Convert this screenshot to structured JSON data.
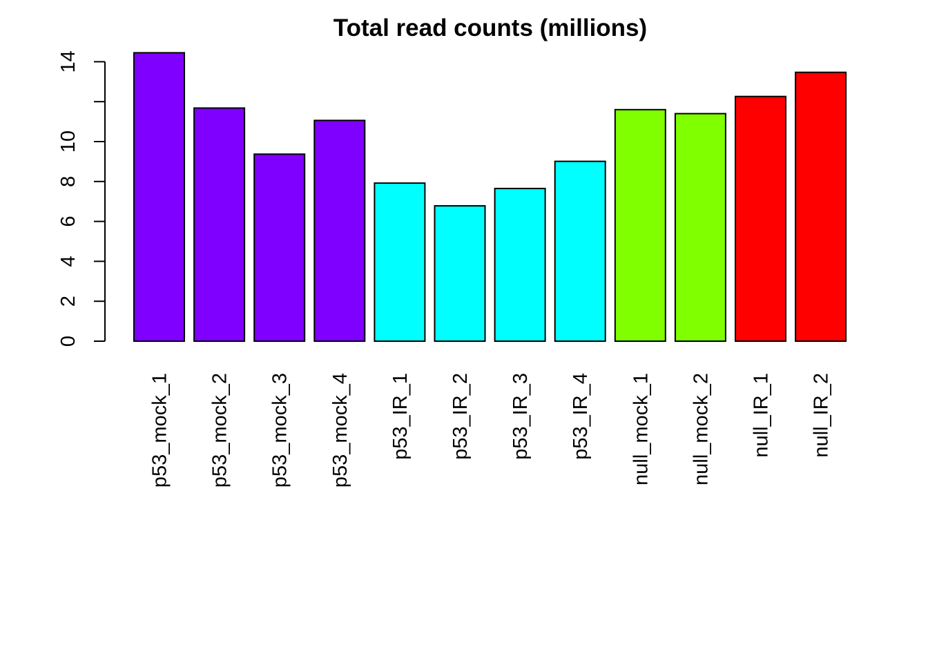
{
  "chart_data": {
    "type": "bar",
    "title": "Total read counts (millions)",
    "xlabel": "",
    "ylabel": "",
    "categories": [
      "p53_mock_1",
      "p53_mock_2",
      "p53_mock_3",
      "p53_mock_4",
      "p53_IR_1",
      "p53_IR_2",
      "p53_IR_3",
      "p53_IR_4",
      "null_mock_1",
      "null_mock_2",
      "null_IR_1",
      "null_IR_2"
    ],
    "values": [
      14.45,
      11.68,
      9.37,
      11.06,
      7.92,
      6.78,
      7.65,
      9.01,
      11.6,
      11.4,
      12.26,
      13.47
    ],
    "colors": [
      "#8000FF",
      "#8000FF",
      "#8000FF",
      "#8000FF",
      "#00FFFF",
      "#00FFFF",
      "#00FFFF",
      "#00FFFF",
      "#80FF00",
      "#80FF00",
      "#FF0000",
      "#FF0000"
    ],
    "yticks": [
      0,
      2,
      4,
      6,
      8,
      10,
      12,
      14
    ],
    "ytick_labels": [
      "0",
      "2",
      "4",
      "6",
      "8",
      "10",
      "",
      "14"
    ],
    "ylim": [
      0,
      14
    ],
    "grid": false,
    "legend": "none"
  }
}
